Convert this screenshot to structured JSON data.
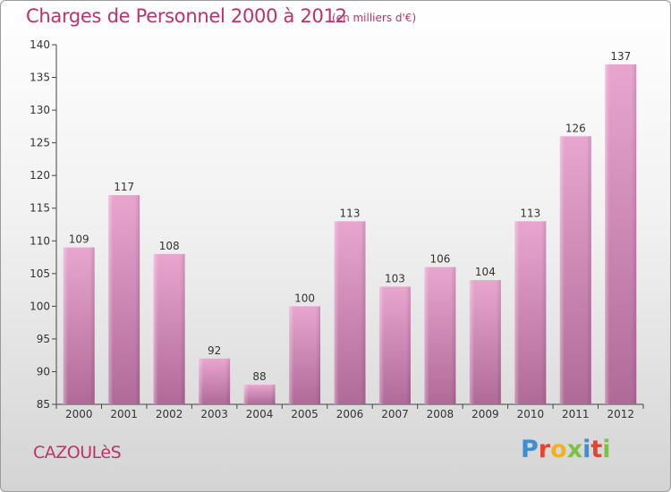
{
  "page": {
    "title": "Charges de Personnel 2000 à 2012",
    "subtitle": "(en milliers d'€)",
    "town": "CAZOULèS",
    "logo_text": "Proxiti",
    "logo_colors": [
      "#3a8fd6",
      "#e8432e",
      "#f2b020",
      "#7cc242",
      "#3a8fd6",
      "#e8432e",
      "#7cc242"
    ]
  },
  "chart_data": {
    "type": "bar",
    "title": "Charges de Personnel 2000 à 2012",
    "subtitle": "(en milliers d'€)",
    "categories": [
      "2000",
      "2001",
      "2002",
      "2003",
      "2004",
      "2005",
      "2006",
      "2007",
      "2008",
      "2009",
      "2010",
      "2011",
      "2012"
    ],
    "values": [
      109,
      117,
      108,
      92,
      88,
      100,
      113,
      103,
      106,
      104,
      113,
      126,
      137
    ],
    "data_labels": [
      "109",
      "117",
      "108",
      "92",
      "88",
      "100",
      "113",
      "103",
      "106",
      "104",
      "113",
      "126",
      "137"
    ],
    "ylim": [
      85,
      140
    ],
    "yticks": [
      85,
      90,
      95,
      100,
      105,
      110,
      115,
      120,
      125,
      130,
      135,
      140
    ],
    "grid": false,
    "bar_color": "#d98bb8",
    "label_color": "#333333",
    "axis_color": "#444444"
  }
}
